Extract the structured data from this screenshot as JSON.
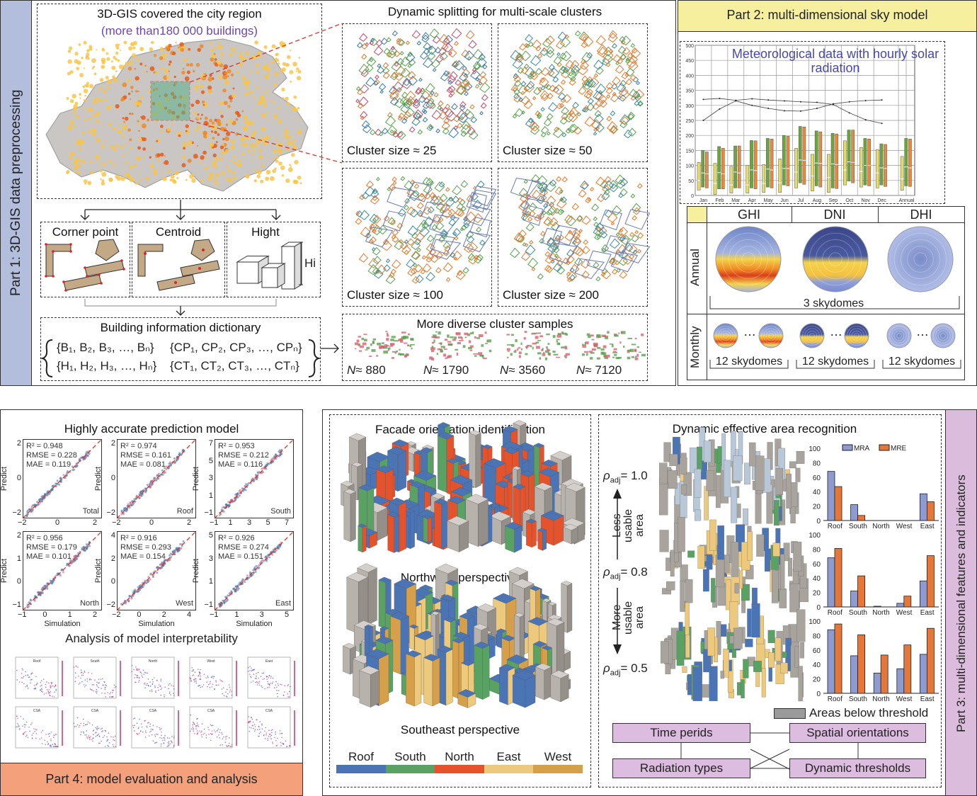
{
  "part1": {
    "label": "Part 1: 3D-GIS data preprocessing",
    "map_title": "3D-GIS covered the city region",
    "map_subtitle": "(more than180 000 buildings)",
    "features": [
      {
        "label": "Corner point"
      },
      {
        "label": "Centroid"
      },
      {
        "label": "Hight",
        "height_label": "Hi"
      }
    ],
    "dictionary": {
      "title": "Building information dictionary",
      "rows": [
        [
          "{B₁, B₂, B₃, …, Bₙ}",
          "{CP₁, CP₂, CP₃, …, CPₙ}"
        ],
        [
          "{H₁, H₂, H₃, …, Hₙ}",
          "{CT₁, CT₂, CT₃, …, CTₙ}"
        ]
      ]
    },
    "clusters": {
      "title": "Dynamic splitting for multi-scale clusters",
      "panels": [
        "Cluster size ≈ 25",
        "Cluster size ≈ 50",
        "Cluster size ≈ 100",
        "Cluster size ≈ 200"
      ]
    },
    "samples": {
      "title": "More diverse cluster samples",
      "items": [
        {
          "var": "N",
          "value": "≈ 880"
        },
        {
          "var": "N",
          "value": "≈ 1790"
        },
        {
          "var": "N",
          "value": "≈ 3560"
        },
        {
          "var": "N",
          "value": "≈ 7120"
        }
      ]
    }
  },
  "part2": {
    "label": "Part 2: multi-dimensional sky model",
    "chart_title": "Meteorological data with hourly solar radiation",
    "sky_columns": [
      "GHI",
      "DNI",
      "DHI"
    ],
    "sky_rows": [
      "Annual",
      "Monthly"
    ],
    "annual_caption": "3 skydomes",
    "monthly_captions": [
      "12 skydomes",
      "12 skydomes",
      "12 skydomes"
    ],
    "ellipsis": "…"
  },
  "part3": {
    "label": "Part 3: multi-dimensional features and indicators",
    "facade_title": "Facade orientation identification",
    "perspectives": [
      "Northwest perspective",
      "Southeast perspective"
    ],
    "legend": [
      {
        "label": "Roof",
        "color": "#4a74b4"
      },
      {
        "label": "South",
        "color": "#5aa164"
      },
      {
        "label": "North",
        "color": "#e4532c"
      },
      {
        "label": "East",
        "color": "#ecc97c"
      },
      {
        "label": "West",
        "color": "#d6a04a"
      }
    ],
    "dynamic_title": "Dynamic effective area recognition",
    "rho": [
      {
        "symbol": "ρ",
        "sub": "adj",
        "value": "= 1.0"
      },
      {
        "symbol": "ρ",
        "sub": "adj",
        "value": "= 0.8"
      },
      {
        "symbol": "ρ",
        "sub": "adj",
        "value": "= 0.5"
      }
    ],
    "less_usable": [
      "Less",
      "usable",
      "area"
    ],
    "more_usable": [
      "More",
      "usable",
      "area"
    ],
    "threshold_legend": "Areas below threshold",
    "flow": {
      "time": "Time perids",
      "spatial": "Spatial orientations",
      "radiation": "Radiation types",
      "thresholds": "Dynamic thresholds"
    }
  },
  "part4": {
    "label": "Part 4: model evaluation and analysis",
    "title": "Highly accurate prediction model",
    "ylabel": "Predict",
    "xlabel": "Simulation",
    "panels": [
      {
        "name": "Total",
        "r2": "R² = 0.948",
        "rmse": "RMSE = 0.228",
        "mae": "MAE = 0.119",
        "xticks": [
          "−2",
          "0",
          "2"
        ],
        "yticks": [
          "2",
          "0",
          "−2"
        ]
      },
      {
        "name": "Roof",
        "r2": "R² = 0.974",
        "rmse": "RMSE = 0.161",
        "mae": "MAE = 0.081",
        "xticks": [
          "−2",
          "0",
          "2"
        ],
        "yticks": [
          "2",
          "0",
          "−2"
        ]
      },
      {
        "name": "South",
        "r2": "R² = 0.953",
        "rmse": "RMSE = 0.212",
        "mae": "MAE = 0.116",
        "xticks": [
          "−1",
          "1",
          "3",
          "5",
          "7"
        ],
        "yticks": [
          "7",
          "5",
          "3",
          "1",
          "−1"
        ]
      },
      {
        "name": "North",
        "r2": "R² = 0.956",
        "rmse": "RMSE = 0.179",
        "mae": "MAE = 0.101",
        "xticks": [
          "−1",
          "0",
          "1",
          "2"
        ],
        "yticks": [
          "2",
          "1",
          "0",
          "−1"
        ]
      },
      {
        "name": "West",
        "r2": "R² = 0.916",
        "rmse": "RMSE = 0.293",
        "mae": "MAE = 0.154",
        "xticks": [
          "−2",
          "0",
          "2",
          "4"
        ],
        "yticks": [
          "4",
          "2",
          "0",
          "−2"
        ]
      },
      {
        "name": "East",
        "r2": "R² = 0.926",
        "rmse": "RMSE = 0.274",
        "mae": "MAE = 0.151",
        "xticks": [
          "−1",
          "1",
          "3",
          "5"
        ],
        "yticks": [
          "5",
          "3",
          "1",
          "−1"
        ]
      }
    ],
    "interpret_title": "Analysis of model interpretability",
    "shap_panels": [
      "Roof",
      "South",
      "North",
      "West",
      "East",
      "CSA",
      "CSA",
      "CSA",
      "CSA",
      "CSA"
    ]
  },
  "chart_data": [
    {
      "type": "box",
      "title": "Meteorological data with hourly solar radiation",
      "categories": [
        "Jan",
        "Feb",
        "Mar",
        "Apr",
        "May",
        "Jun",
        "Jul",
        "Aug",
        "Sep",
        "Oct",
        "Nov",
        "Dec",
        "Annual"
      ],
      "ylim": [
        0,
        500
      ],
      "yticks": [
        0,
        50,
        100,
        150,
        200,
        250,
        300,
        350,
        400,
        450,
        500
      ],
      "series": [
        {
          "name": "yellow",
          "color": "#e6dc6a",
          "boxes": [
            [
              18,
              50,
              110
            ],
            [
              3,
              40,
              107
            ],
            [
              8,
              35,
              97
            ],
            [
              8,
              35,
              100
            ],
            [
              10,
              40,
              103
            ],
            [
              10,
              42,
              122
            ],
            [
              25,
              78,
              157
            ],
            [
              15,
              65,
              137
            ],
            [
              10,
              60,
              137
            ],
            [
              35,
              85,
              182
            ],
            [
              28,
              80,
              160
            ],
            [
              25,
              75,
              153
            ],
            [
              17,
              55,
              130
            ]
          ]
        },
        {
          "name": "green",
          "color": "#6aa63c",
          "boxes": [
            [
              28,
              75,
              150
            ],
            [
              22,
              76,
              163
            ],
            [
              25,
              78,
              165
            ],
            [
              25,
              85,
              183
            ],
            [
              28,
              88,
              190
            ],
            [
              35,
              90,
              200
            ],
            [
              42,
              118,
              230
            ],
            [
              32,
              108,
              215
            ],
            [
              25,
              105,
              207
            ],
            [
              48,
              112,
              218
            ],
            [
              35,
              100,
              190
            ],
            [
              35,
              92,
              172
            ],
            [
              32,
              95,
              190
            ]
          ]
        },
        {
          "name": "orange",
          "color": "#e88a3c",
          "boxes": [
            [
              25,
              72,
              145
            ],
            [
              22,
              72,
              157
            ],
            [
              25,
              75,
              165
            ],
            [
              22,
              83,
              182
            ],
            [
              25,
              85,
              188
            ],
            [
              32,
              90,
              197
            ],
            [
              37,
              117,
              228
            ],
            [
              28,
              107,
              212
            ],
            [
              23,
              103,
              205
            ],
            [
              42,
              110,
              218
            ],
            [
              32,
              100,
              188
            ],
            [
              30,
              90,
              170
            ],
            [
              30,
              92,
              188
            ]
          ]
        }
      ],
      "lines": [
        [
          320,
          323,
          317,
          322,
          318,
          315,
          312,
          310,
          303,
          275,
          252,
          240
        ],
        [
          250,
          288,
          315,
          300,
          290,
          282,
          281,
          290,
          305,
          312,
          316,
          318
        ]
      ]
    },
    {
      "type": "bar",
      "title": "ρadj = 1.0",
      "categories": [
        "Roof",
        "South",
        "North",
        "West",
        "East"
      ],
      "ylim": [
        0,
        100
      ],
      "yticks": [
        0,
        20,
        40,
        60,
        80,
        100
      ],
      "series": [
        {
          "name": "MRA",
          "color": "#8e9bd0",
          "values": [
            68,
            22,
            0,
            0,
            37
          ]
        },
        {
          "name": "MRE",
          "color": "#e3783a",
          "values": [
            47,
            7,
            0,
            0,
            26
          ]
        }
      ]
    },
    {
      "type": "bar",
      "title": "ρadj = 0.8",
      "categories": [
        "Roof",
        "South",
        "North",
        "West",
        "East"
      ],
      "ylim": [
        0,
        100
      ],
      "yticks": [
        0,
        20,
        40,
        60,
        80,
        100
      ],
      "series": [
        {
          "name": "MRA",
          "color": "#8e9bd0",
          "values": [
            68,
            22,
            1,
            5,
            36
          ]
        },
        {
          "name": "MRE",
          "color": "#e3783a",
          "values": [
            81,
            43,
            0,
            15,
            71
          ]
        }
      ]
    },
    {
      "type": "bar",
      "title": "ρadj = 0.5",
      "categories": [
        "Roof",
        "South",
        "North",
        "West",
        "East"
      ],
      "ylim": [
        0,
        100
      ],
      "yticks": [
        0,
        20,
        40,
        60,
        80,
        100
      ],
      "series": [
        {
          "name": "MRA",
          "color": "#8e9bd0",
          "values": [
            88,
            52,
            28,
            34,
            54
          ]
        },
        {
          "name": "MRE",
          "color": "#e3783a",
          "values": [
            96,
            81,
            53,
            67,
            90
          ]
        }
      ]
    }
  ]
}
